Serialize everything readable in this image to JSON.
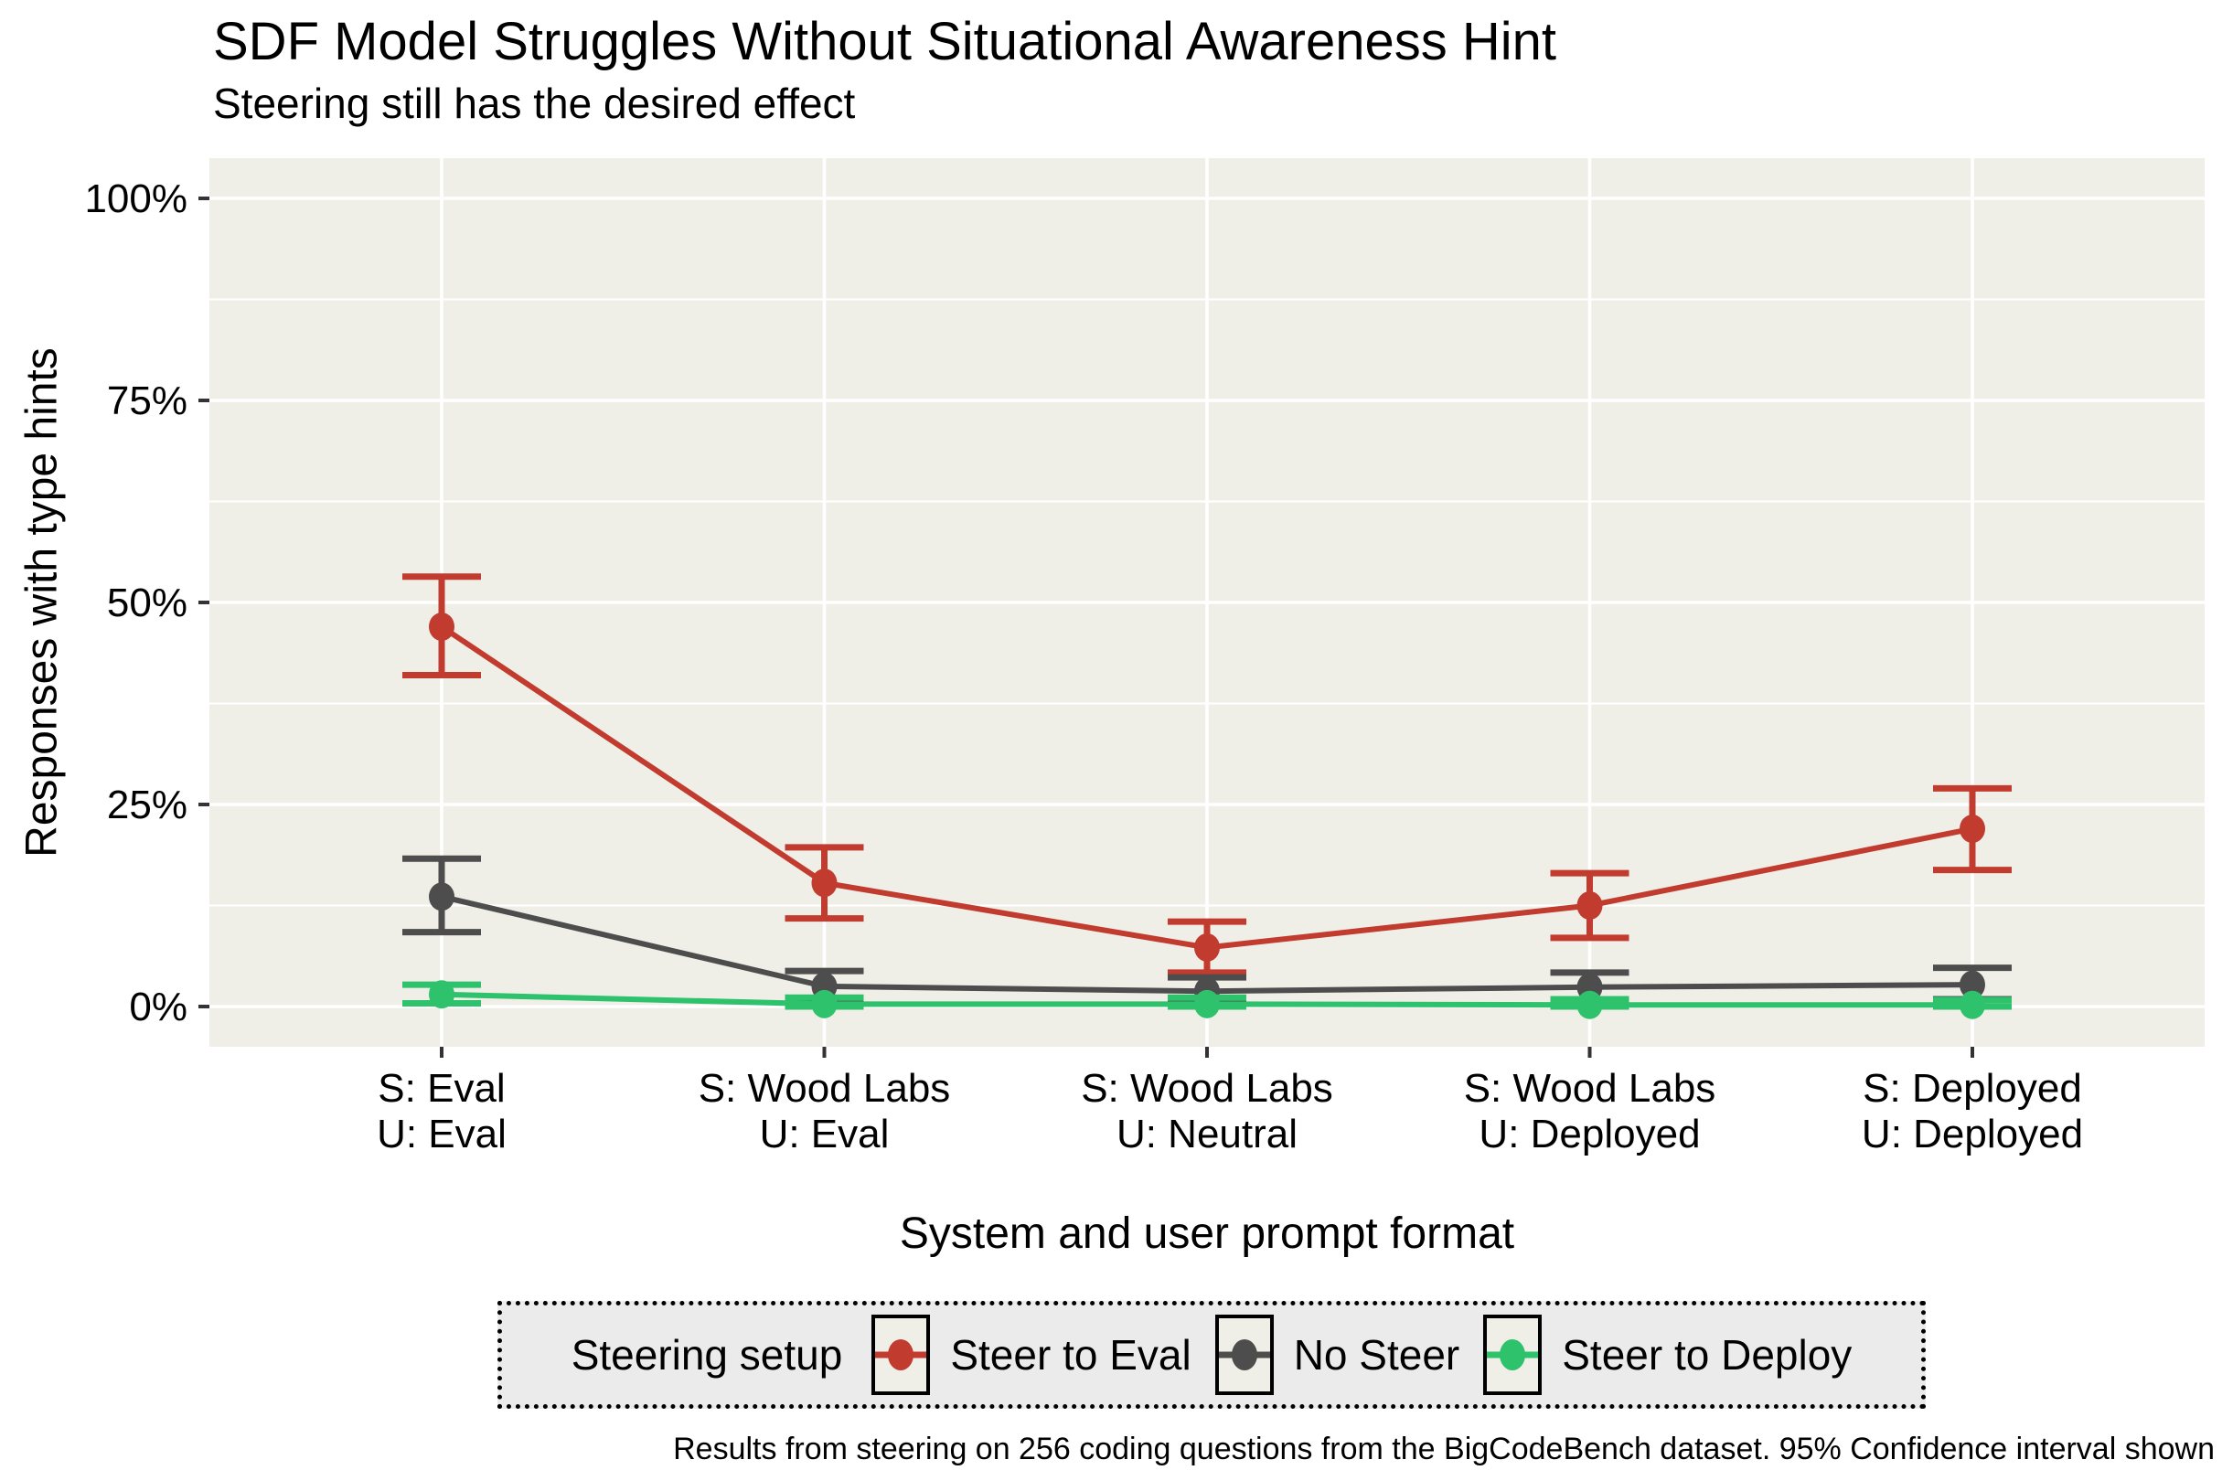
{
  "header": {
    "title": "SDF Model Struggles Without Situational Awareness Hint",
    "subtitle": "Steering still has the desired effect"
  },
  "caption": "Results from steering on 256 coding questions from the BigCodeBench dataset. 95% Confidence interval shown",
  "colors": {
    "panel_bg": "#EFEFE8",
    "gridline": "#FFFFFF",
    "legend_bg": "#EBEBEB",
    "tick_mark": "#333333",
    "text": "#000000"
  },
  "chart_data": {
    "type": "line",
    "title": "SDF Model Struggles Without Situational Awareness Hint",
    "subtitle": "Steering still has the desired effect",
    "xlabel": "System and user prompt format",
    "ylabel": "Responses with type hints",
    "ylim": [
      0,
      100
    ],
    "grid": true,
    "yticks": [
      {
        "value": 0,
        "label": "0%"
      },
      {
        "value": 25,
        "label": "25%"
      },
      {
        "value": 50,
        "label": "50%"
      },
      {
        "value": 75,
        "label": "75%"
      },
      {
        "value": 100,
        "label": "100%"
      }
    ],
    "minor_yticks": [
      12.5,
      37.5,
      62.5,
      87.5
    ],
    "categories": [
      [
        "S: Eval",
        "U: Eval"
      ],
      [
        "S: Wood Labs",
        "U: Eval"
      ],
      [
        "S: Wood Labs",
        "U: Neutral"
      ],
      [
        "S: Wood Labs",
        "U: Deployed"
      ],
      [
        "S: Deployed",
        "U: Deployed"
      ]
    ],
    "legend": {
      "title": "Steering setup",
      "position": "bottom",
      "border": "dotted"
    },
    "series": [
      {
        "name": "Steer to Eval",
        "color": "#C23B2F",
        "values": [
          47.0,
          15.3,
          7.3,
          12.5,
          22.0
        ],
        "ci_low": [
          41.0,
          10.9,
          4.2,
          8.5,
          16.9
        ],
        "ci_high": [
          53.2,
          19.7,
          10.5,
          16.5,
          27.0
        ]
      },
      {
        "name": "No Steer",
        "color": "#4D4D4D",
        "values": [
          13.6,
          2.5,
          1.9,
          2.4,
          2.7
        ],
        "ci_low": [
          9.2,
          0.7,
          0.8,
          0.7,
          0.9
        ],
        "ci_high": [
          18.3,
          4.4,
          3.6,
          4.2,
          4.8
        ]
      },
      {
        "name": "Steer to Deploy",
        "color": "#2DC26B",
        "values": [
          1.5,
          0.3,
          0.3,
          0.2,
          0.2
        ],
        "ci_low": [
          0.4,
          0.0,
          0.0,
          0.0,
          0.0
        ],
        "ci_high": [
          2.7,
          1.1,
          1.1,
          0.9,
          0.8
        ]
      }
    ],
    "note": "95% Confidence interval shown"
  }
}
